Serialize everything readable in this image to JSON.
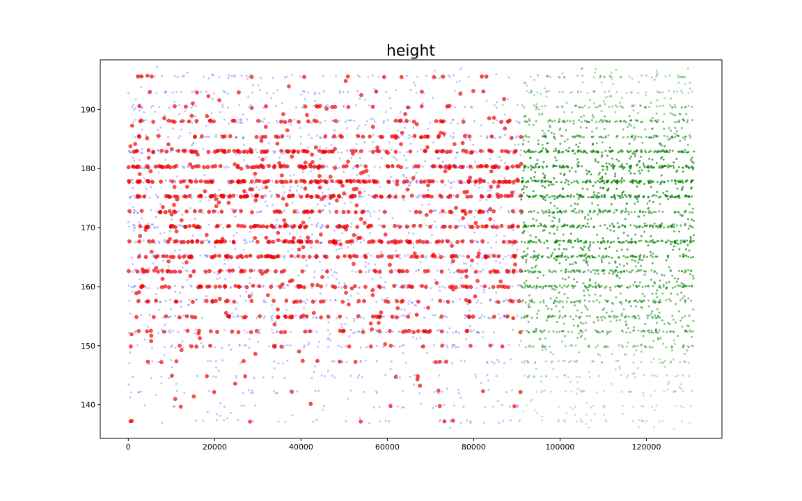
{
  "chart_data": {
    "type": "scatter",
    "title": "height",
    "xlabel": "",
    "ylabel": "",
    "xlim": [
      -6500,
      137500
    ],
    "ylim": [
      134.3,
      198.4
    ],
    "xticks": [
      0,
      20000,
      40000,
      60000,
      80000,
      100000,
      120000
    ],
    "yticks": [
      140,
      150,
      160,
      170,
      180,
      190
    ],
    "grid": false,
    "legend": "none",
    "height_levels": [
      137.2,
      139.7,
      142.2,
      144.8,
      147.3,
      149.9,
      152.4,
      154.9,
      157.5,
      160.0,
      162.6,
      165.1,
      167.6,
      170.2,
      172.7,
      175.3,
      177.8,
      180.3,
      182.9,
      185.4,
      188.0,
      190.5,
      193.0,
      195.6
    ],
    "level_density": [
      0.05,
      0.03,
      0.07,
      0.1,
      0.2,
      0.35,
      0.55,
      0.6,
      0.6,
      0.75,
      0.7,
      0.85,
      0.9,
      0.85,
      0.7,
      0.95,
      1.0,
      0.95,
      0.9,
      0.6,
      0.6,
      0.35,
      0.2,
      0.25
    ],
    "series": [
      {
        "name": "",
        "color": "#0000ff",
        "marker": "small-dot",
        "alpha": 0.15,
        "x_range": [
          0,
          91000
        ]
      },
      {
        "name": "",
        "color": "#ff0000",
        "marker": "circle",
        "alpha": 0.65,
        "x_range": [
          0,
          91000
        ]
      },
      {
        "name": "",
        "color": "#008000",
        "marker": "small-dot",
        "alpha": 0.2,
        "x_range": [
          91000,
          131000
        ]
      }
    ]
  }
}
